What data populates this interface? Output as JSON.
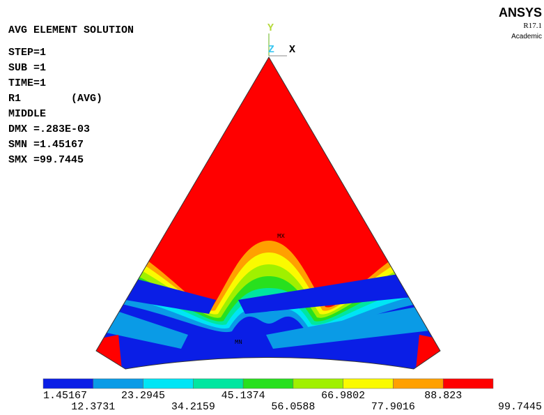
{
  "title": "AVG ELEMENT SOLUTION",
  "info": [
    "STEP=1",
    "SUB =1",
    "TIME=1",
    "R1        (AVG)",
    "MIDDLE",
    "DMX =.283E-03",
    "SMN =1.45167",
    "SMX =99.7445"
  ],
  "logo": {
    "name": "ANSYS",
    "version": "R17.1",
    "license": "Academic"
  },
  "triad": {
    "y": "Y",
    "z": "Z",
    "x": "X"
  },
  "markers": {
    "max": "MX",
    "min": "MN"
  },
  "legend": {
    "colors": [
      "#0a1ee6",
      "#0a9be6",
      "#00e5f5",
      "#00e6a0",
      "#28e01e",
      "#a0f000",
      "#fafa00",
      "#ffa000",
      "#ff0000"
    ],
    "labels": [
      "1.45167",
      "12.3731",
      "23.2945",
      "34.2159",
      "45.1374",
      "56.0588",
      "66.9802",
      "77.9016",
      "88.823",
      "99.7445"
    ]
  }
}
